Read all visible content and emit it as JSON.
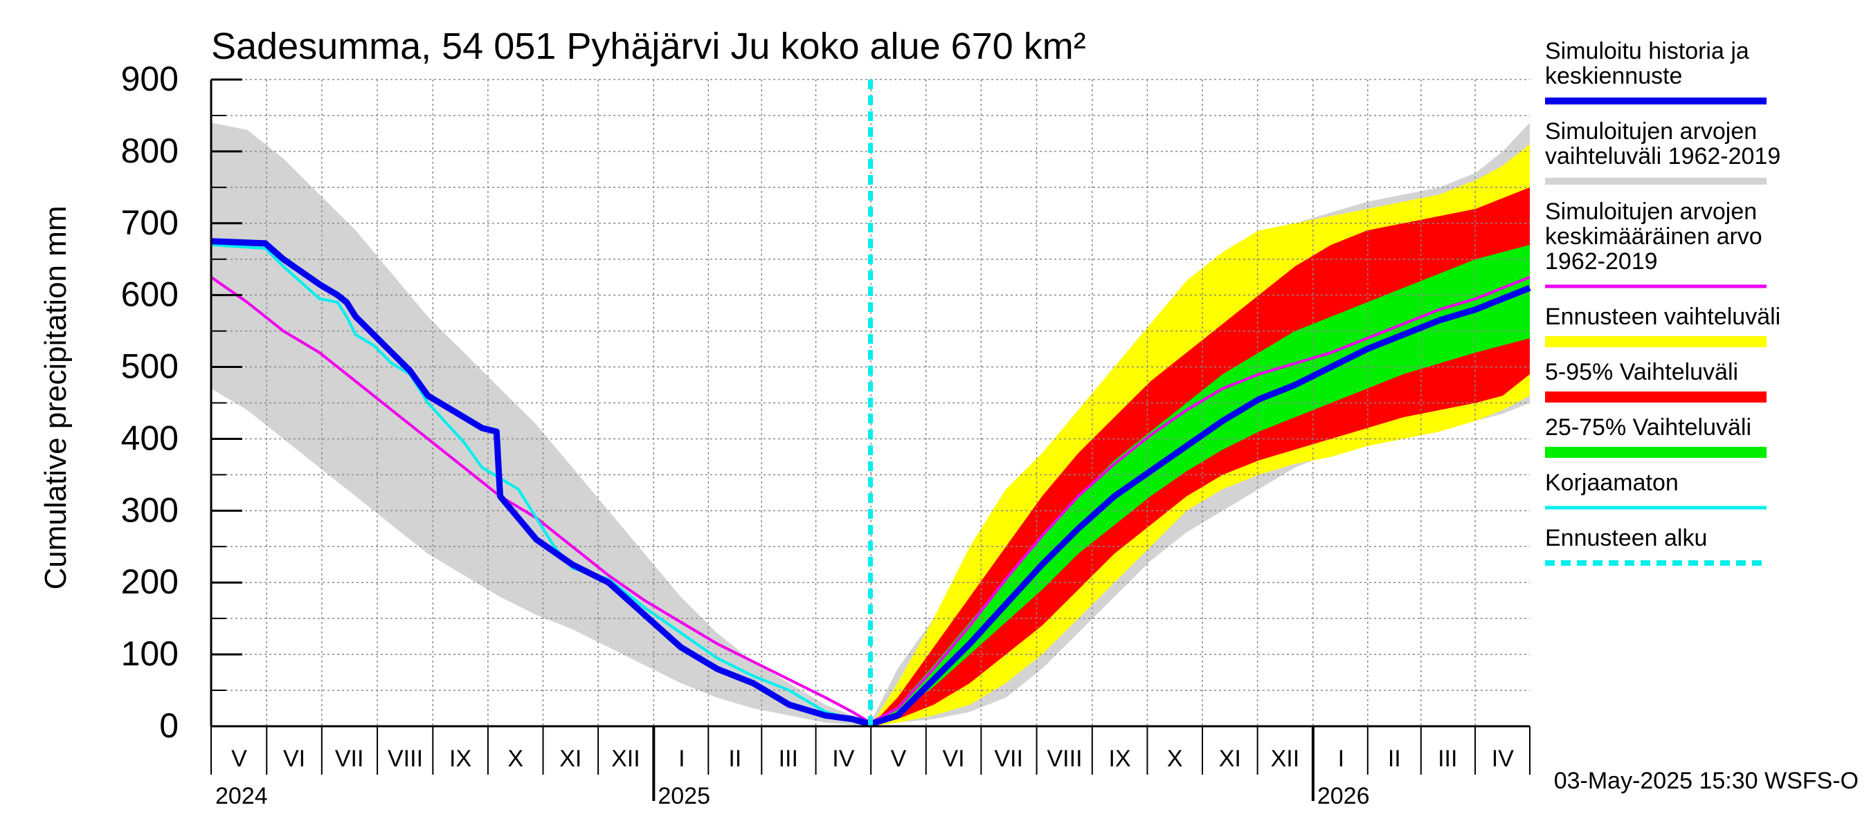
{
  "chart_data": {
    "type": "area",
    "title": "Sadesumma, 54 051 Pyhäjärvi Ju koko alue 670 km²",
    "ylabel": "Cumulative precipitation   mm",
    "ylim": [
      0,
      900
    ],
    "yticks": [
      "0",
      "100",
      "200",
      "300",
      "400",
      "500",
      "600",
      "700",
      "800",
      "900"
    ],
    "x_range_days": [
      0,
      730
    ],
    "forecast_start_day": 365,
    "month_labels": [
      {
        "label": "V",
        "day": 15.5
      },
      {
        "label": "VI",
        "day": 46
      },
      {
        "label": "VII",
        "day": 76.5
      },
      {
        "label": "VIII",
        "day": 107.5
      },
      {
        "label": "IX",
        "day": 138
      },
      {
        "label": "X",
        "day": 168.5
      },
      {
        "label": "XI",
        "day": 199
      },
      {
        "label": "XII",
        "day": 229.5
      },
      {
        "label": "I",
        "day": 260.5
      },
      {
        "label": "II",
        "day": 290
      },
      {
        "label": "III",
        "day": 319.5
      },
      {
        "label": "IV",
        "day": 350
      },
      {
        "label": "V",
        "day": 380.5
      },
      {
        "label": "VI",
        "day": 411
      },
      {
        "label": "VII",
        "day": 441.5
      },
      {
        "label": "VIII",
        "day": 472.5
      },
      {
        "label": "IX",
        "day": 503
      },
      {
        "label": "X",
        "day": 533.5
      },
      {
        "label": "XI",
        "day": 564
      },
      {
        "label": "XII",
        "day": 594.5
      },
      {
        "label": "I",
        "day": 625.5
      },
      {
        "label": "II",
        "day": 655
      },
      {
        "label": "III",
        "day": 684.5
      },
      {
        "label": "IV",
        "day": 715
      }
    ],
    "year_labels": [
      {
        "label": "2024",
        "day": 0
      },
      {
        "label": "2025",
        "day": 245
      },
      {
        "label": "2026",
        "day": 610
      }
    ],
    "year_boundary_days": [
      245,
      610
    ],
    "series": [
      {
        "name": "Simuloitujen arvojen vaihteluväli 1962-2019",
        "kind": "band",
        "color": "#d3d3d3",
        "x": [
          0,
          20,
          40,
          60,
          80,
          100,
          120,
          140,
          160,
          180,
          200,
          220,
          240,
          260,
          280,
          300,
          320,
          340,
          355,
          365,
          380,
          400,
          420,
          440,
          460,
          480,
          500,
          520,
          540,
          560,
          580,
          600,
          620,
          640,
          660,
          680,
          700,
          715,
          730
        ],
        "upper": [
          840,
          830,
          790,
          740,
          690,
          630,
          570,
          520,
          470,
          420,
          360,
          300,
          240,
          180,
          130,
          90,
          60,
          30,
          15,
          5,
          80,
          150,
          230,
          310,
          380,
          440,
          500,
          560,
          610,
          650,
          680,
          700,
          715,
          730,
          740,
          750,
          770,
          800,
          840
        ],
        "lower": [
          470,
          440,
          400,
          360,
          320,
          280,
          240,
          210,
          180,
          155,
          135,
          110,
          85,
          60,
          40,
          25,
          15,
          5,
          2,
          0,
          5,
          10,
          20,
          40,
          80,
          130,
          180,
          230,
          270,
          300,
          330,
          360,
          380,
          395,
          405,
          415,
          425,
          435,
          450
        ]
      },
      {
        "name": "Ennusteen vaihteluväli",
        "kind": "band",
        "color": "#ffff00",
        "x": [
          365,
          380,
          400,
          420,
          440,
          460,
          480,
          500,
          520,
          540,
          560,
          580,
          600,
          620,
          640,
          660,
          680,
          700,
          715,
          730
        ],
        "upper": [
          0,
          60,
          150,
          250,
          330,
          380,
          440,
          500,
          560,
          620,
          660,
          690,
          700,
          710,
          720,
          730,
          740,
          760,
          780,
          810
        ],
        "lower": [
          0,
          5,
          15,
          30,
          60,
          100,
          150,
          200,
          250,
          300,
          330,
          350,
          365,
          375,
          390,
          400,
          410,
          425,
          440,
          460
        ]
      },
      {
        "name": "5-95% Vaihteluväli",
        "kind": "band",
        "color": "#ff0000",
        "x": [
          365,
          380,
          400,
          420,
          440,
          460,
          480,
          500,
          520,
          540,
          560,
          580,
          600,
          620,
          640,
          660,
          680,
          700,
          715,
          730
        ],
        "upper": [
          0,
          40,
          110,
          180,
          250,
          320,
          380,
          430,
          480,
          520,
          560,
          600,
          640,
          670,
          690,
          700,
          710,
          720,
          735,
          750
        ],
        "lower": [
          0,
          10,
          30,
          60,
          100,
          140,
          190,
          240,
          280,
          320,
          350,
          370,
          385,
          400,
          415,
          430,
          440,
          450,
          460,
          490
        ]
      },
      {
        "name": "25-75% Vaihteluväli",
        "kind": "band",
        "color": "#00ee00",
        "x": [
          365,
          380,
          400,
          420,
          440,
          460,
          480,
          500,
          520,
          540,
          560,
          580,
          600,
          620,
          640,
          660,
          680,
          700,
          715,
          730
        ],
        "upper": [
          0,
          28,
          85,
          145,
          205,
          265,
          320,
          370,
          410,
          450,
          490,
          520,
          550,
          570,
          590,
          610,
          630,
          650,
          660,
          670
        ],
        "lower": [
          0,
          18,
          55,
          100,
          145,
          190,
          240,
          280,
          320,
          355,
          385,
          410,
          430,
          450,
          470,
          490,
          505,
          520,
          530,
          540
        ]
      },
      {
        "name": "Simuloitujen arvojen keskimääräinen arvo 1962-2019",
        "kind": "line",
        "color": "#ee00ee",
        "x": [
          0,
          20,
          40,
          60,
          80,
          100,
          120,
          140,
          160,
          180,
          200,
          220,
          240,
          260,
          280,
          300,
          320,
          340,
          355,
          365,
          380,
          400,
          420,
          440,
          460,
          480,
          500,
          520,
          540,
          560,
          580,
          600,
          620,
          640,
          660,
          680,
          700,
          715,
          730
        ],
        "values": [
          625,
          590,
          550,
          520,
          480,
          440,
          400,
          360,
          320,
          290,
          250,
          210,
          175,
          145,
          115,
          90,
          65,
          40,
          20,
          5,
          25,
          80,
          140,
          205,
          265,
          320,
          365,
          405,
          440,
          470,
          490,
          505,
          520,
          540,
          560,
          580,
          595,
          610,
          625
        ]
      },
      {
        "name": "Korjaamaton",
        "kind": "line",
        "color": "#00eeee",
        "x": [
          0,
          30,
          40,
          60,
          70,
          75,
          80,
          90,
          100,
          110,
          120,
          140,
          150,
          160,
          170,
          175,
          190,
          200,
          220,
          240,
          260,
          280,
          300,
          320,
          340,
          355,
          365,
          380,
          400,
          420,
          440,
          460,
          480,
          500,
          520,
          540,
          560,
          580,
          600,
          620,
          640,
          660,
          680,
          700,
          715,
          730
        ],
        "values": [
          670,
          665,
          640,
          595,
          590,
          570,
          545,
          530,
          505,
          490,
          450,
          395,
          360,
          345,
          330,
          310,
          250,
          220,
          205,
          165,
          130,
          95,
          70,
          50,
          20,
          10,
          3,
          15,
          65,
          115,
          170,
          225,
          275,
          320,
          355,
          390,
          425,
          455,
          475,
          500,
          525,
          545,
          565,
          580,
          595,
          610
        ]
      },
      {
        "name": "Simuloitu historia ja keskiennuste",
        "kind": "line",
        "color": "#0000ee",
        "x": [
          0,
          30,
          40,
          60,
          70,
          75,
          80,
          90,
          100,
          110,
          120,
          140,
          150,
          158,
          160,
          170,
          180,
          200,
          220,
          240,
          260,
          280,
          300,
          320,
          340,
          355,
          365,
          380,
          400,
          420,
          440,
          460,
          480,
          500,
          520,
          540,
          560,
          580,
          600,
          620,
          640,
          660,
          680,
          700,
          715,
          730
        ],
        "values": [
          675,
          672,
          650,
          615,
          600,
          590,
          570,
          545,
          520,
          495,
          460,
          430,
          415,
          410,
          320,
          290,
          260,
          225,
          200,
          155,
          110,
          80,
          60,
          30,
          15,
          10,
          3,
          15,
          65,
          115,
          170,
          225,
          275,
          320,
          355,
          390,
          425,
          455,
          475,
          500,
          525,
          545,
          565,
          580,
          595,
          610
        ]
      }
    ],
    "legend": [
      {
        "label_lines": [
          "Simuloitu historia ja",
          "keskiennuste"
        ],
        "color": "#0000ee",
        "style": "thick"
      },
      {
        "label_lines": [
          "Simuloitujen arvojen",
          "vaihteluväli 1962-2019"
        ],
        "color": "#d3d3d3",
        "style": "thick"
      },
      {
        "label_lines": [
          "Simuloitujen arvojen",
          "keskimääräinen arvo",
          "   1962-2019"
        ],
        "color": "#ee00ee",
        "style": "thin"
      },
      {
        "label_lines": [
          "Ennusteen vaihteluväli"
        ],
        "color": "#ffff00",
        "style": "band"
      },
      {
        "label_lines": [
          "5-95% Vaihteluväli"
        ],
        "color": "#ff0000",
        "style": "band"
      },
      {
        "label_lines": [
          "25-75% Vaihteluväli"
        ],
        "color": "#00ee00",
        "style": "band"
      },
      {
        "label_lines": [
          "Korjaamaton"
        ],
        "color": "#00eeee",
        "style": "thin"
      },
      {
        "label_lines": [
          "Ennusteen alku"
        ],
        "color": "#00eeee",
        "style": "dashed"
      }
    ],
    "footer": "03-May-2025 15:30 WSFS-O"
  }
}
